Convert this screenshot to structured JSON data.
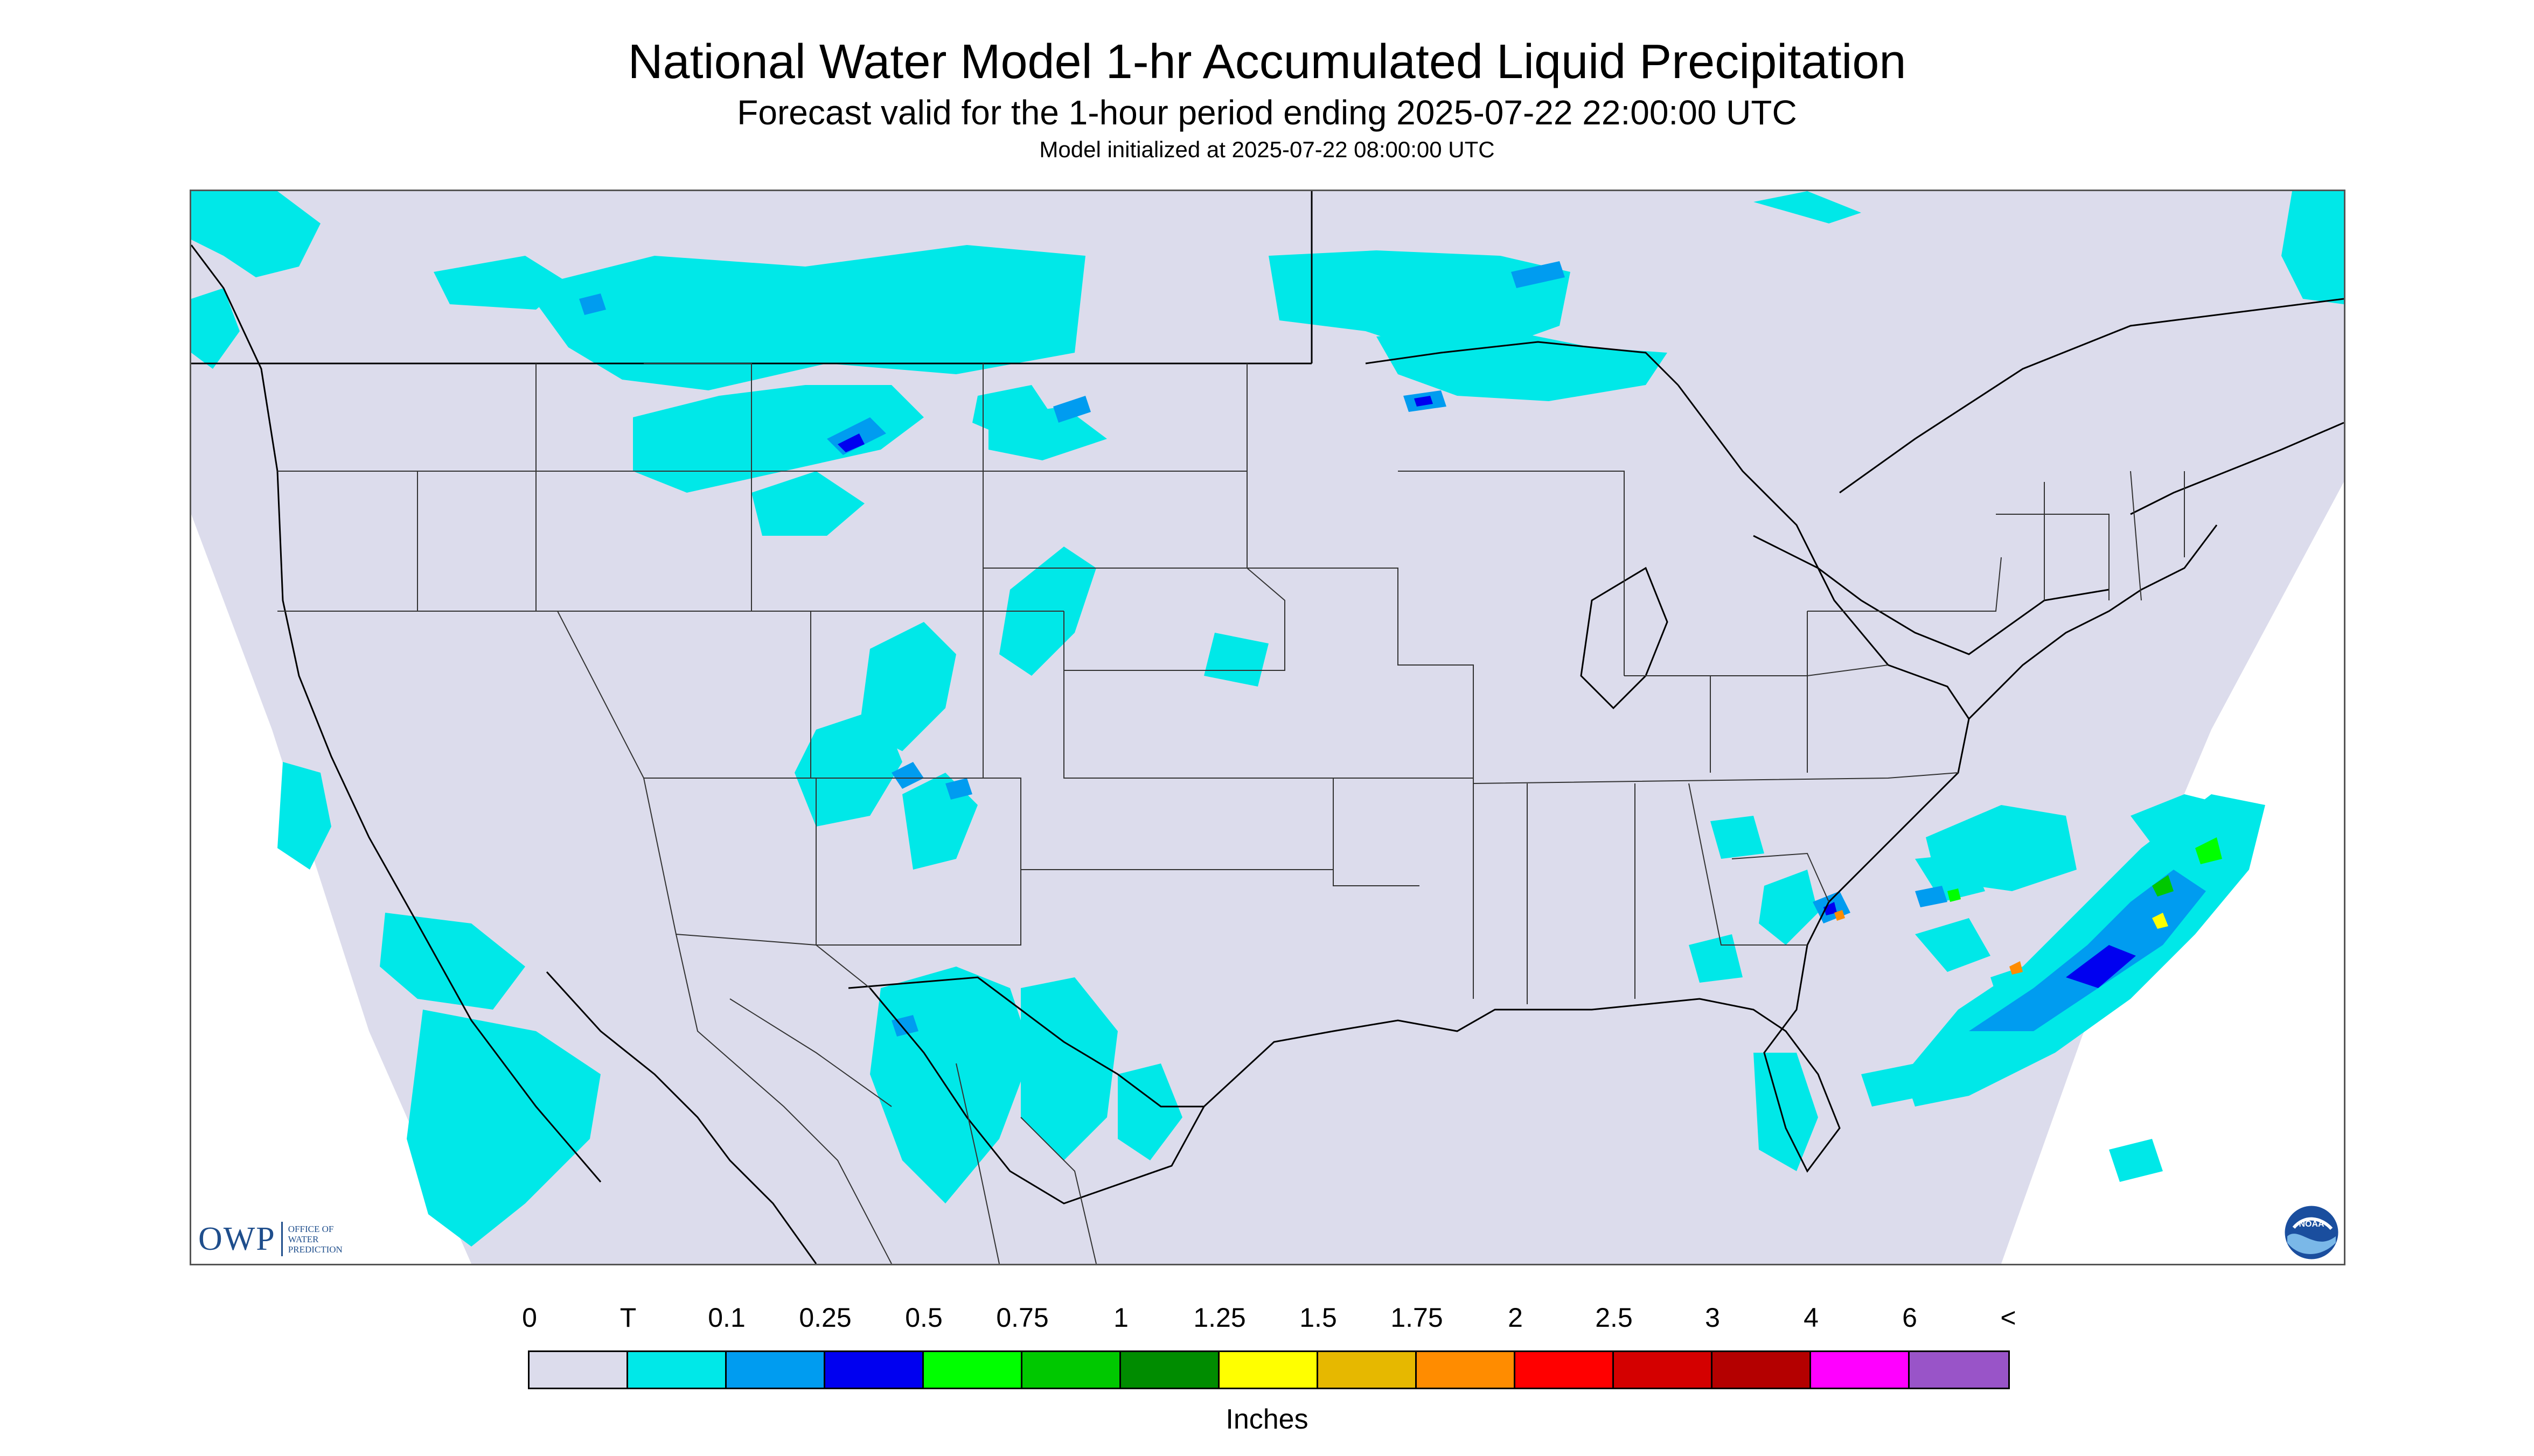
{
  "header": {
    "title": "National Water Model 1-hr Accumulated Liquid Precipitation",
    "subtitle": "Forecast valid for the 1-hour period ending 2025-07-22 22:00:00 UTC",
    "init": "Model initialized at 2025-07-22 08:00:00 UTC"
  },
  "map": {
    "background_color": "#dcdcec",
    "outside_color": "#ffffff",
    "boundary_color": "#000000"
  },
  "logos": {
    "owp_short": "OWP",
    "owp_line1": "OFFICE OF",
    "owp_line2": "WATER",
    "owp_line3": "PREDICTION",
    "noaa": "NOAA"
  },
  "legend": {
    "labels": [
      "0",
      "T",
      "0.1",
      "0.25",
      "0.5",
      "0.75",
      "1",
      "1.25",
      "1.5",
      "1.75",
      "2",
      "2.5",
      "3",
      "4",
      "6",
      "<"
    ],
    "colors": [
      "#dcdcec",
      "#00e8e8",
      "#009cf0",
      "#0000f0",
      "#00ff00",
      "#00c800",
      "#008c00",
      "#ffff00",
      "#e6b800",
      "#ff8c00",
      "#ff0000",
      "#d40000",
      "#b40000",
      "#ff00ff",
      "#9954c8"
    ],
    "units": "Inches"
  }
}
